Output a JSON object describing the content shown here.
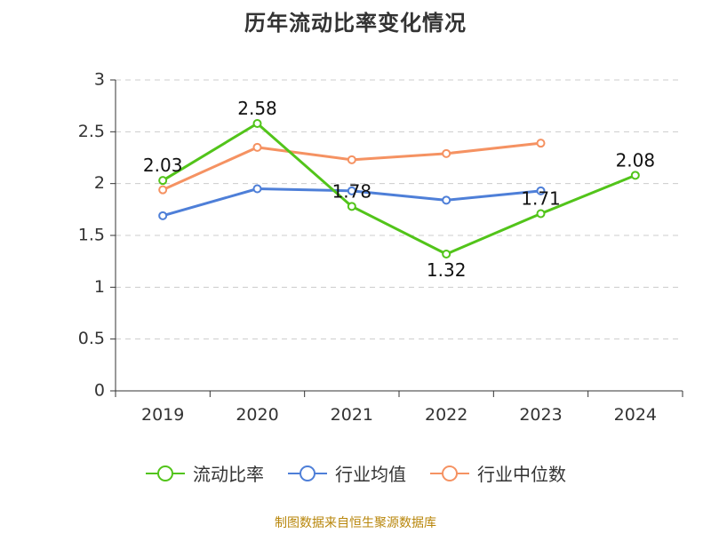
{
  "title": "历年流动比率变化情况",
  "source": "制图数据来自恒生聚源数据库",
  "chart_data": {
    "type": "line",
    "title": "历年流动比率变化情况",
    "categories": [
      "2019",
      "2020",
      "2021",
      "2022",
      "2023",
      "2024"
    ],
    "ylim": [
      0,
      3
    ],
    "yticks": [
      "0",
      "0.5",
      "1",
      "1.5",
      "2",
      "2.5",
      "3"
    ],
    "grid": true,
    "legend_position": "bottom",
    "series": [
      {
        "name": "流动比率",
        "color": "#52c41a",
        "values": [
          2.03,
          2.58,
          1.78,
          1.32,
          1.71,
          2.08
        ],
        "labels": [
          "2.03",
          "2.58",
          "1.78",
          "1.32",
          "1.71",
          "2.08"
        ]
      },
      {
        "name": "行业均值",
        "color": "#4e7fd8",
        "values": [
          1.69,
          1.95,
          1.93,
          1.84,
          1.93,
          null
        ]
      },
      {
        "name": "行业中位数",
        "color": "#f59262",
        "values": [
          1.94,
          2.35,
          2.23,
          2.29,
          2.39,
          null
        ]
      }
    ]
  }
}
